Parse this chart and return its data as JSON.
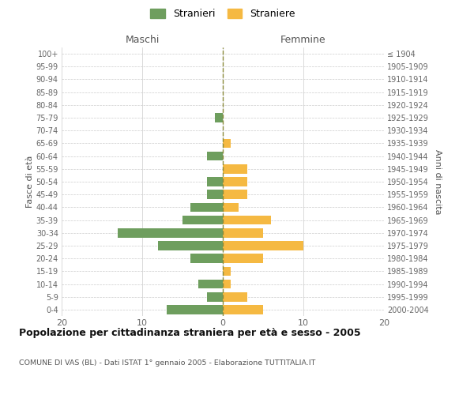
{
  "age_groups": [
    "0-4",
    "5-9",
    "10-14",
    "15-19",
    "20-24",
    "25-29",
    "30-34",
    "35-39",
    "40-44",
    "45-49",
    "50-54",
    "55-59",
    "60-64",
    "65-69",
    "70-74",
    "75-79",
    "80-84",
    "85-89",
    "90-94",
    "95-99",
    "100+"
  ],
  "birth_years": [
    "2000-2004",
    "1995-1999",
    "1990-1994",
    "1985-1989",
    "1980-1984",
    "1975-1979",
    "1970-1974",
    "1965-1969",
    "1960-1964",
    "1955-1959",
    "1950-1954",
    "1945-1949",
    "1940-1944",
    "1935-1939",
    "1930-1934",
    "1925-1929",
    "1920-1924",
    "1915-1919",
    "1910-1914",
    "1905-1909",
    "≤ 1904"
  ],
  "maschi": [
    7,
    2,
    3,
    0,
    4,
    8,
    13,
    5,
    4,
    2,
    2,
    0,
    2,
    0,
    0,
    1,
    0,
    0,
    0,
    0,
    0
  ],
  "femmine": [
    5,
    3,
    1,
    1,
    5,
    10,
    5,
    6,
    2,
    3,
    3,
    3,
    0,
    1,
    0,
    0,
    0,
    0,
    0,
    0,
    0
  ],
  "color_maschi": "#6e9e5e",
  "color_femmine": "#f5b942",
  "color_dashed_line": "#8a8a3a",
  "title": "Popolazione per cittadinanza straniera per età e sesso - 2005",
  "subtitle": "COMUNE DI VAS (BL) - Dati ISTAT 1° gennaio 2005 - Elaborazione TUTTITALIA.IT",
  "ylabel_left": "Fasce di età",
  "ylabel_right": "Anni di nascita",
  "label_maschi": "Maschi",
  "label_femmine": "Femmine",
  "legend_stranieri": "Stranieri",
  "legend_straniere": "Straniere",
  "xlim": 20,
  "background_color": "#ffffff",
  "grid_color": "#cccccc"
}
